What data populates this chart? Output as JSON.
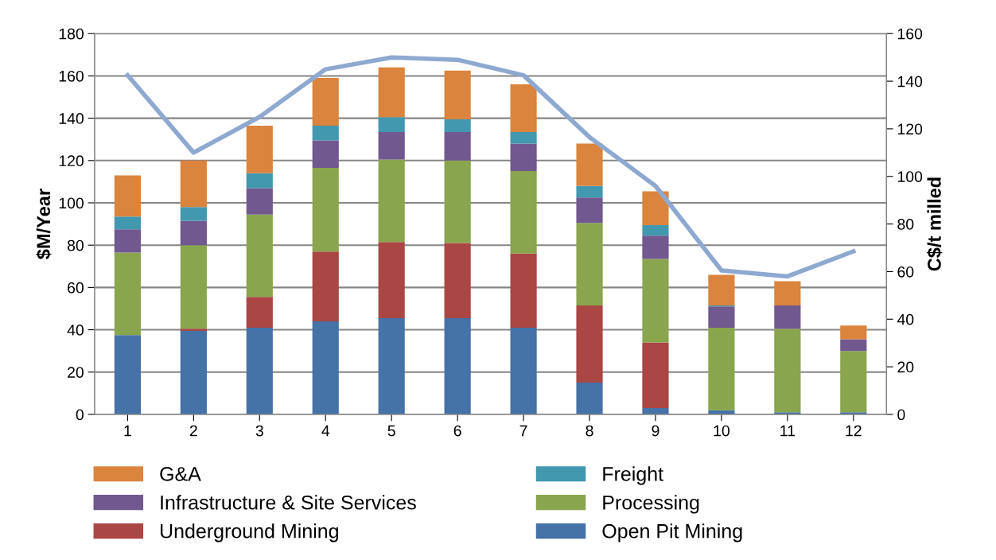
{
  "chart_data": {
    "type": "bar",
    "stacked": true,
    "ylabel": "$M/Year",
    "y2label": "C$/t milled",
    "categories": [
      "1",
      "2",
      "3",
      "4",
      "5",
      "6",
      "7",
      "8",
      "9",
      "10",
      "11",
      "12"
    ],
    "ylim": [
      0,
      180
    ],
    "yticks": [
      0,
      20,
      40,
      60,
      80,
      100,
      120,
      140,
      160,
      180
    ],
    "y2lim": [
      0,
      160
    ],
    "y2ticks": [
      0,
      20,
      40,
      60,
      80,
      100,
      120,
      140,
      160
    ],
    "grid": "y",
    "legend": "bottom",
    "series": [
      {
        "name": "Open Pit Mining",
        "color": "#4572a7",
        "values": [
          37.5,
          39.5,
          41,
          44,
          45.5,
          45.5,
          41,
          15,
          3,
          2,
          1,
          1
        ]
      },
      {
        "name": "Underground Mining",
        "color": "#aa4643",
        "values": [
          0,
          1,
          14.5,
          33,
          36,
          35.5,
          35,
          36.5,
          31,
          0,
          0,
          0
        ]
      },
      {
        "name": "Processing",
        "color": "#89a54e",
        "values": [
          39,
          39.5,
          39,
          39.5,
          39,
          39,
          39,
          39,
          39.5,
          39,
          39.5,
          29
        ]
      },
      {
        "name": "Infrastructure & Site Services",
        "color": "#71588f",
        "values": [
          11,
          11.5,
          12.5,
          13,
          13,
          13.5,
          13,
          12,
          11,
          10,
          11,
          5.5
        ]
      },
      {
        "name": "Freight",
        "color": "#4198af",
        "values": [
          6,
          6.5,
          7,
          7,
          7,
          6,
          5.5,
          5.5,
          5,
          0.5,
          0,
          0
        ]
      },
      {
        "name": "G&A",
        "color": "#db843d",
        "values": [
          19.5,
          22,
          22.5,
          22.5,
          23.5,
          23,
          22.5,
          20,
          16,
          14.5,
          11.5,
          6.5
        ]
      },
      {
        "type": "line",
        "axis": "y2",
        "color": "#8ea9d0",
        "values": [
          142.5,
          110,
          125,
          145,
          150,
          149,
          142.5,
          116.5,
          96,
          60.5,
          58,
          68.5
        ]
      }
    ]
  }
}
